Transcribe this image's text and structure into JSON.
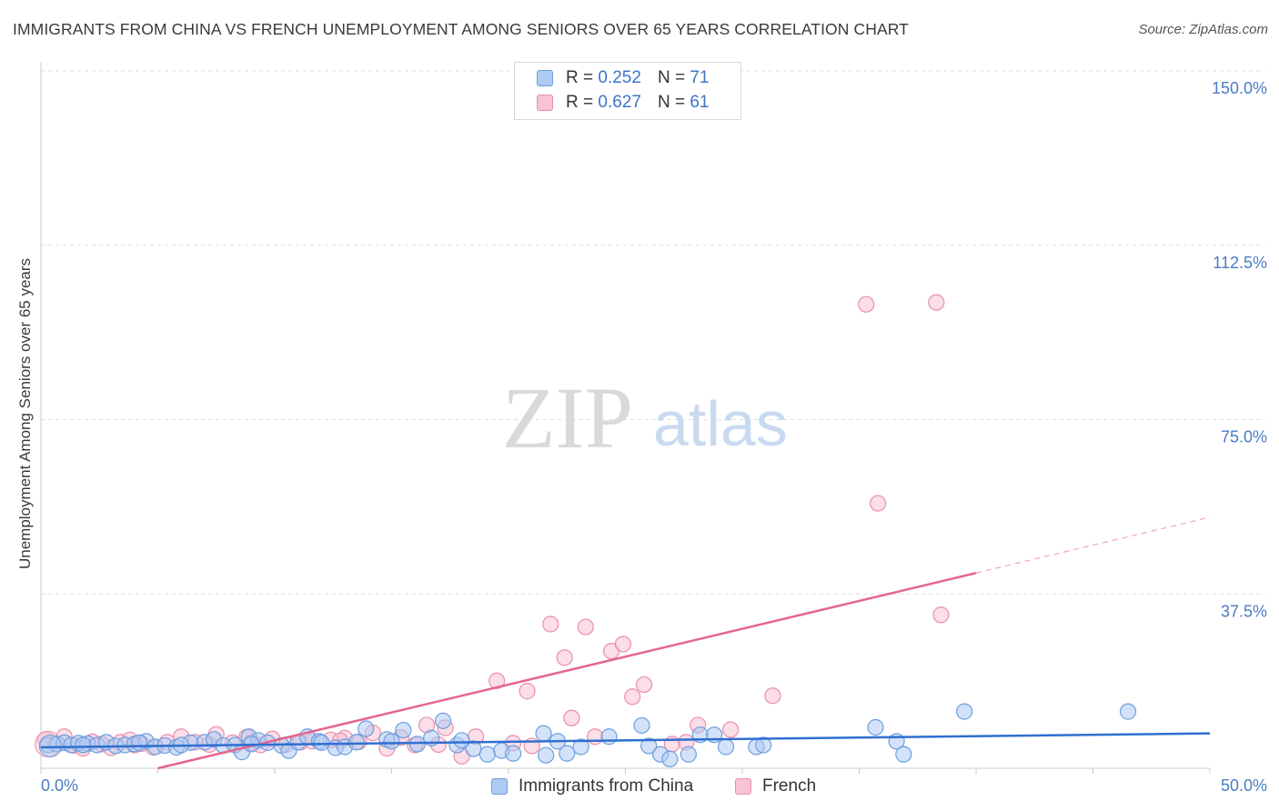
{
  "title": "IMMIGRANTS FROM CHINA VS FRENCH UNEMPLOYMENT AMONG SENIORS OVER 65 YEARS CORRELATION CHART",
  "source": "Source: ZipAtlas.com",
  "watermark": {
    "zip": "ZIP",
    "atlas": "atlas"
  },
  "legend": {
    "china": {
      "r_label": "R = ",
      "r_value": "0.252",
      "n_label": "N = ",
      "n_value": "71"
    },
    "french": {
      "r_label": "R = ",
      "r_value": "0.627",
      "n_label": "N = ",
      "n_value": "61"
    }
  },
  "bottom_legend": {
    "china": "Immigrants from China",
    "french": "French"
  },
  "colors": {
    "china_fill": "#aecbf2",
    "china_stroke": "#6c9ee0",
    "china_line": "#2f6fd0",
    "french_fill": "#f8c3d3",
    "french_stroke": "#ea8fab",
    "french_line": "#e4668f",
    "grid": "#dddddd",
    "tick_text": "#4a7cc4"
  },
  "chart_data": {
    "type": "scatter",
    "title": "IMMIGRANTS FROM CHINA VS FRENCH UNEMPLOYMENT AMONG SENIORS OVER 65 YEARS CORRELATION CHART",
    "xlabel": "",
    "ylabel": "Unemployment Among Seniors over 65 years",
    "xlim": [
      0,
      50
    ],
    "ylim": [
      0,
      150
    ],
    "x_tick_labels": [
      "0.0%",
      "50.0%"
    ],
    "y_ticks": [
      37.5,
      75.0,
      112.5,
      150.0
    ],
    "y_tick_labels": [
      "37.5%",
      "75.0%",
      "112.5%",
      "150.0%"
    ],
    "series": [
      {
        "name": "Immigrants from China",
        "trend": {
          "x0": 0,
          "y0": 4.5,
          "x1": 50,
          "y1": 7.5
        },
        "points": [
          [
            0.3,
            5.0
          ],
          [
            0.7,
            5.2
          ],
          [
            1.0,
            5.5
          ],
          [
            1.3,
            5.0
          ],
          [
            1.6,
            5.4
          ],
          [
            2.0,
            5.3
          ],
          [
            2.4,
            5.0
          ],
          [
            2.8,
            5.6
          ],
          [
            3.2,
            4.8
          ],
          [
            3.6,
            5.0
          ],
          [
            4.0,
            5.2
          ],
          [
            4.5,
            5.8
          ],
          [
            4.9,
            4.6
          ],
          [
            5.3,
            4.9
          ],
          [
            5.8,
            4.5
          ],
          [
            6.4,
            5.5
          ],
          [
            7.0,
            5.6
          ],
          [
            7.4,
            6.2
          ],
          [
            7.8,
            4.9
          ],
          [
            8.3,
            5.0
          ],
          [
            8.6,
            3.5
          ],
          [
            8.9,
            6.8
          ],
          [
            9.3,
            6.0
          ],
          [
            9.7,
            5.5
          ],
          [
            10.3,
            4.9
          ],
          [
            10.6,
            3.8
          ],
          [
            11.0,
            5.6
          ],
          [
            11.4,
            6.8
          ],
          [
            11.9,
            5.8
          ],
          [
            12.6,
            4.4
          ],
          [
            13.0,
            4.6
          ],
          [
            13.5,
            5.6
          ],
          [
            13.9,
            8.5
          ],
          [
            14.8,
            6.2
          ],
          [
            15.5,
            8.2
          ],
          [
            16.1,
            5.2
          ],
          [
            16.7,
            6.5
          ],
          [
            17.2,
            10.2
          ],
          [
            17.8,
            5.0
          ],
          [
            18.5,
            4.2
          ],
          [
            19.1,
            3.0
          ],
          [
            19.7,
            3.8
          ],
          [
            20.2,
            3.2
          ],
          [
            21.5,
            7.5
          ],
          [
            21.6,
            2.8
          ],
          [
            22.1,
            5.8
          ],
          [
            22.5,
            3.2
          ],
          [
            23.1,
            4.6
          ],
          [
            24.3,
            6.8
          ],
          [
            25.7,
            9.2
          ],
          [
            26.0,
            4.8
          ],
          [
            26.5,
            3.0
          ],
          [
            26.9,
            2.0
          ],
          [
            27.7,
            3.0
          ],
          [
            28.2,
            7.2
          ],
          [
            28.8,
            7.2
          ],
          [
            29.3,
            4.6
          ],
          [
            30.6,
            4.6
          ],
          [
            30.9,
            5.0
          ],
          [
            35.7,
            8.8
          ],
          [
            36.6,
            5.8
          ],
          [
            36.9,
            3.0
          ],
          [
            39.5,
            12.2
          ],
          [
            46.5,
            12.2
          ],
          [
            4.2,
            5.5
          ],
          [
            6.0,
            5.0
          ],
          [
            9.0,
            5.2
          ],
          [
            12.0,
            5.5
          ],
          [
            15.0,
            5.8
          ],
          [
            18.0,
            6.0
          ],
          [
            1.8,
            5.0
          ]
        ]
      },
      {
        "name": "French",
        "trend": {
          "x0": 5,
          "y0": 0,
          "x1": 40,
          "y1": 42,
          "dashed_to": {
            "x": 50,
            "y": 54
          }
        },
        "points": [
          [
            0.2,
            6.2
          ],
          [
            0.6,
            5.2
          ],
          [
            1.0,
            6.8
          ],
          [
            1.4,
            4.9
          ],
          [
            1.8,
            4.3
          ],
          [
            2.2,
            5.7
          ],
          [
            2.6,
            5.2
          ],
          [
            3.0,
            4.4
          ],
          [
            3.4,
            5.6
          ],
          [
            3.8,
            6.1
          ],
          [
            4.3,
            5.3
          ],
          [
            4.8,
            4.5
          ],
          [
            5.4,
            5.6
          ],
          [
            6.0,
            6.8
          ],
          [
            6.6,
            5.6
          ],
          [
            7.2,
            5.1
          ],
          [
            7.5,
            7.3
          ],
          [
            8.2,
            5.5
          ],
          [
            8.8,
            6.7
          ],
          [
            9.4,
            5.0
          ],
          [
            9.9,
            6.3
          ],
          [
            10.5,
            5.1
          ],
          [
            11.1,
            5.6
          ],
          [
            11.6,
            5.8
          ],
          [
            12.4,
            6.1
          ],
          [
            13.0,
            6.5
          ],
          [
            13.6,
            5.7
          ],
          [
            14.2,
            7.6
          ],
          [
            14.8,
            4.3
          ],
          [
            15.4,
            6.6
          ],
          [
            16.0,
            5.0
          ],
          [
            16.5,
            9.3
          ],
          [
            17.0,
            5.1
          ],
          [
            17.3,
            8.7
          ],
          [
            18.0,
            2.6
          ],
          [
            18.6,
            6.8
          ],
          [
            19.5,
            18.8
          ],
          [
            20.2,
            5.4
          ],
          [
            20.8,
            16.6
          ],
          [
            21.8,
            31.0
          ],
          [
            22.4,
            23.8
          ],
          [
            22.7,
            10.8
          ],
          [
            23.3,
            30.4
          ],
          [
            23.7,
            6.8
          ],
          [
            24.4,
            25.2
          ],
          [
            24.9,
            26.7
          ],
          [
            25.3,
            15.4
          ],
          [
            25.8,
            18.0
          ],
          [
            27.0,
            5.2
          ],
          [
            27.6,
            5.6
          ],
          [
            28.1,
            9.3
          ],
          [
            29.5,
            8.3
          ],
          [
            31.3,
            15.6
          ],
          [
            35.3,
            99.8
          ],
          [
            35.8,
            57.0
          ],
          [
            38.3,
            100.2
          ],
          [
            38.5,
            33.0
          ],
          [
            4.0,
            5.0
          ],
          [
            9.0,
            5.5
          ],
          [
            12.8,
            5.9
          ],
          [
            21.0,
            4.8
          ]
        ]
      }
    ]
  }
}
